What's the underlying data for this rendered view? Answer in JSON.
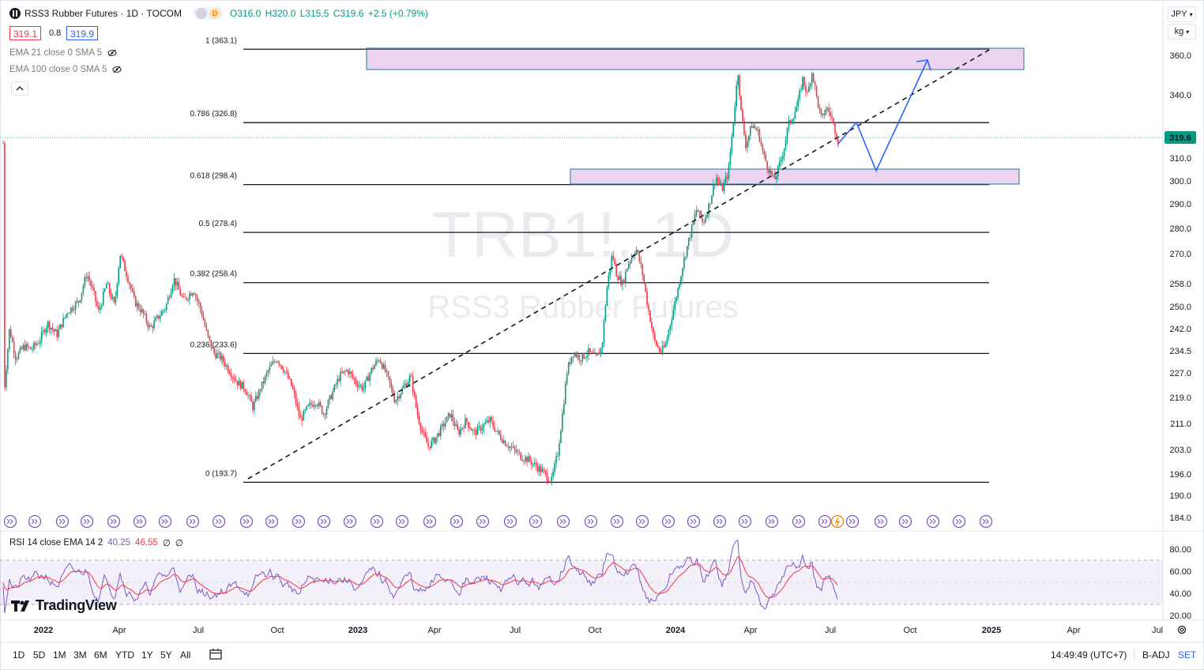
{
  "header": {
    "symbol_title": "RSS3 Rubber Futures · 1D · TOCOM",
    "pill_d_label": "D",
    "ohlc": {
      "o": "O316.0",
      "h": "H320.0",
      "l": "L315.5",
      "c": "C319.6",
      "change": "+2.5 (+0.79%)"
    },
    "bid": "319.1",
    "spread": "0.8",
    "ask": "319.9",
    "accent_red": "#f23645",
    "accent_blue": "#2962ff"
  },
  "indicators": {
    "ema21": "EMA 21 close 0 SMA 5",
    "ema100": "EMA 100 close 0 SMA 5",
    "collapse_icon": "chevron-up-icon"
  },
  "currency": {
    "code": "JPY",
    "unit": "kg"
  },
  "watermark": {
    "symbol": "TRB1!, 1D",
    "name": "RSS3 Rubber Futures"
  },
  "price_axis": {
    "ticks": [
      "360.0",
      "340.0",
      "310.0",
      "300.0",
      "290.0",
      "280.0",
      "270.0",
      "258.0",
      "250.0",
      "242.0",
      "234.5",
      "227.0",
      "219.0",
      "211.0",
      "203.0",
      "196.0",
      "190.0",
      "184.0"
    ],
    "last_price": "319.6"
  },
  "fib_levels": [
    {
      "label": "1 (363.1)"
    },
    {
      "label": "0.786 (326.8)"
    },
    {
      "label": "0.618 (298.4)"
    },
    {
      "label": "0.5 (278.4)"
    },
    {
      "label": "0.382 (258.4)"
    },
    {
      "label": "0.236 (233.6)"
    },
    {
      "label": "0 (193.7)"
    }
  ],
  "rsi": {
    "legend": "RSI 14 close EMA 14 2",
    "value1": "40.25",
    "value2": "46.55",
    "value3": "∅",
    "value4": "∅",
    "ticks": [
      "80.00",
      "60.00",
      "40.00",
      "20.00"
    ]
  },
  "branding": {
    "text": "TradingView"
  },
  "time_axis": {
    "labels": [
      "2022",
      "Apr",
      "Jul",
      "Oct",
      "2023",
      "Apr",
      "Jul",
      "Oct",
      "2024",
      "Apr",
      "Jul",
      "Oct",
      "2025",
      "Apr",
      "Jul"
    ]
  },
  "bottom_toolbar": {
    "timeframes": [
      "1D",
      "5D",
      "1M",
      "3M",
      "6M",
      "YTD",
      "1Y",
      "5Y",
      "All"
    ],
    "calendar_icon": "calendar-range-icon",
    "clock": "14:49:49 (UTC+7)",
    "badj": "B-ADJ",
    "set": "SET"
  }
}
